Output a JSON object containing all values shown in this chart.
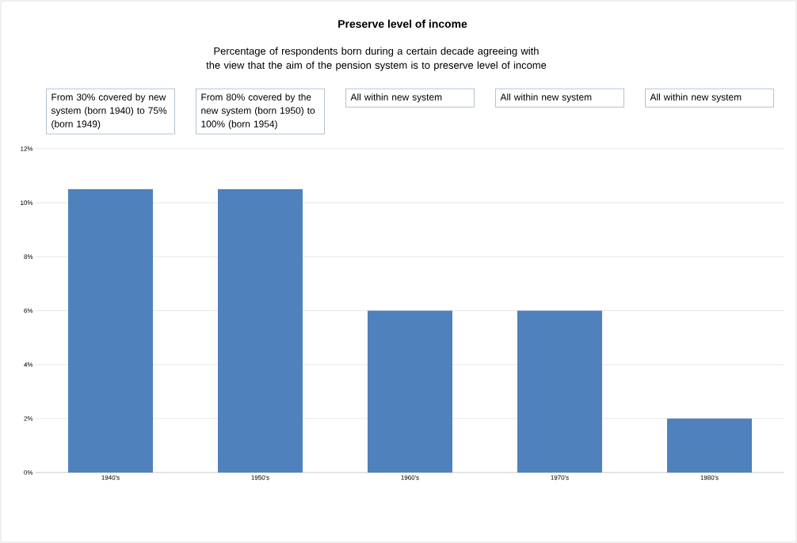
{
  "chart_data": {
    "type": "bar",
    "title": "Preserve level of income",
    "subtitle": "Percentage of respondents born during a certain decade agreeing with the view that the aim of the pension system is to preserve level of income",
    "categories": [
      "1940's",
      "1950's",
      "1960's",
      "1970's",
      "1980's"
    ],
    "values": [
      10.5,
      10.5,
      6,
      6,
      2
    ],
    "color": "#4f81bd",
    "ylim": [
      0,
      12
    ],
    "yticks": [
      {
        "value": 0,
        "label": "0%"
      },
      {
        "value": 2,
        "label": "2%"
      },
      {
        "value": 4,
        "label": "4%"
      },
      {
        "value": 6,
        "label": "6%"
      },
      {
        "value": 8,
        "label": "8%"
      },
      {
        "value": 10,
        "label": "10%"
      },
      {
        "value": 12,
        "label": "12%"
      }
    ],
    "grid": "y",
    "annotations": [
      "From 30% covered by new system (born 1940) to 75% (born 1949)",
      "From 80% covered by the new system (born 1950) to 100% (born 1954)",
      "All within new system",
      "All within new system",
      "All within new system"
    ]
  }
}
